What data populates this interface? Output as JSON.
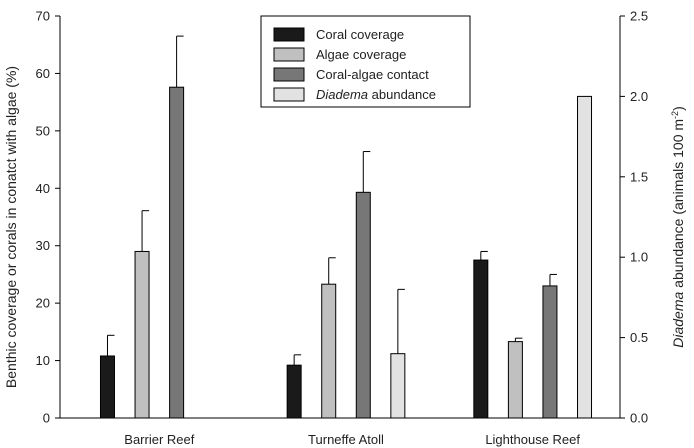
{
  "chart_data": {
    "type": "bar",
    "categories": [
      "Barrier Reef",
      "Turneffe Atoll",
      "Lighthouse Reef"
    ],
    "ylabel_left": "Benthic coverage or corals in conatct with algae (%)",
    "ylabel_right_italic": "Diadema",
    "ylabel_right_rest": " abundance (animals 100 m",
    "ylabel_right_sup": "-2",
    "ylabel_right_close": ")",
    "ylim_left": [
      0,
      70
    ],
    "ylim_right": [
      0,
      2.5
    ],
    "yticks_left": [
      "0",
      "10",
      "20",
      "30",
      "40",
      "50",
      "60",
      "70"
    ],
    "yticks_right": [
      "0.0",
      "0.5",
      "1.0",
      "1.5",
      "2.0",
      "2.5"
    ],
    "legend_position": "top-center",
    "series": [
      {
        "key": "coral",
        "name": "Coral coverage",
        "axis": "left",
        "color": "#1a1a1a",
        "values": [
          10.8,
          9.2,
          27.5
        ],
        "errors": [
          3.6,
          1.8,
          1.5
        ]
      },
      {
        "key": "algae",
        "name": "Algae coverage",
        "axis": "left",
        "color": "#c0c0c0",
        "values": [
          29.0,
          23.3,
          13.3
        ],
        "errors": [
          7.1,
          4.6,
          0.6
        ]
      },
      {
        "key": "contact",
        "name": "Coral-algae contact",
        "axis": "left",
        "color": "#777777",
        "values": [
          57.6,
          39.3,
          23.0
        ],
        "errors": [
          8.9,
          7.1,
          2.0
        ]
      },
      {
        "key": "diadema",
        "name_italic": "Diadema",
        "name_rest": " abundance",
        "axis": "right",
        "color": "#e2e2e2",
        "values": [
          null,
          0.4,
          2.0
        ],
        "errors": [
          null,
          0.4,
          0
        ]
      }
    ]
  }
}
